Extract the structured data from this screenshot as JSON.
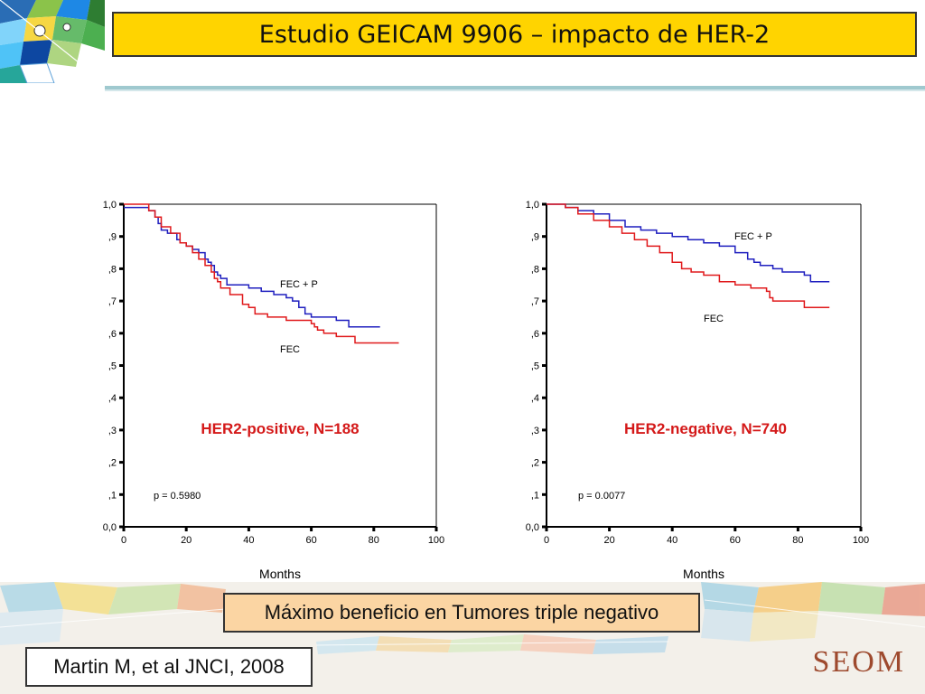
{
  "slide": {
    "title": "Estudio GEICAM 9906 – impacto de HER-2",
    "highlight": "Máximo beneficio en Tumores triple negativo",
    "citation": "Martin M, et al JNCI, 2008",
    "brand": "SEOM"
  },
  "colors": {
    "title_bg": "#ffd400",
    "highlight_bg": "#fbd5a3",
    "fec_p_line": "#1f1fbf",
    "fec_line": "#e0191b",
    "subtitle_text": "#d41919"
  },
  "chart_data": [
    {
      "type": "line",
      "subtitle": "HER2-positive, N=188",
      "xlabel": "Months",
      "ylabel": "",
      "xlim": [
        0,
        100
      ],
      "ylim": [
        0,
        1
      ],
      "x_ticks": [
        "0",
        "20",
        "40",
        "60",
        "80",
        "100"
      ],
      "y_ticks": [
        "0,0",
        ",1",
        ",2",
        ",3",
        ",4",
        ",5",
        ",6",
        ",7",
        ",8",
        ",9",
        "1,0"
      ],
      "annotation": "p = 0.5980",
      "series": [
        {
          "name": "FEC + P",
          "color": "#1f1fbf",
          "points": [
            [
              0,
              0.99
            ],
            [
              4,
              0.99
            ],
            [
              8,
              0.98
            ],
            [
              10,
              0.96
            ],
            [
              11,
              0.94
            ],
            [
              12,
              0.92
            ],
            [
              14,
              0.91
            ],
            [
              17,
              0.89
            ],
            [
              18,
              0.88
            ],
            [
              20,
              0.87
            ],
            [
              22,
              0.86
            ],
            [
              24,
              0.85
            ],
            [
              26,
              0.83
            ],
            [
              27,
              0.82
            ],
            [
              28,
              0.81
            ],
            [
              29,
              0.79
            ],
            [
              30,
              0.78
            ],
            [
              31,
              0.77
            ],
            [
              33,
              0.75
            ],
            [
              34,
              0.75
            ],
            [
              38,
              0.75
            ],
            [
              40,
              0.74
            ],
            [
              44,
              0.73
            ],
            [
              48,
              0.72
            ],
            [
              52,
              0.71
            ],
            [
              54,
              0.7
            ],
            [
              56,
              0.68
            ],
            [
              58,
              0.66
            ],
            [
              60,
              0.65
            ],
            [
              62,
              0.65
            ],
            [
              68,
              0.64
            ],
            [
              69,
              0.64
            ],
            [
              72,
              0.62
            ],
            [
              82,
              0.62
            ]
          ]
        },
        {
          "name": "FEC",
          "color": "#e0191b",
          "points": [
            [
              0,
              1.0
            ],
            [
              2,
              1.0
            ],
            [
              5,
              1.0
            ],
            [
              8,
              0.98
            ],
            [
              10,
              0.96
            ],
            [
              12,
              0.93
            ],
            [
              15,
              0.91
            ],
            [
              18,
              0.88
            ],
            [
              20,
              0.87
            ],
            [
              22,
              0.85
            ],
            [
              24,
              0.83
            ],
            [
              26,
              0.81
            ],
            [
              28,
              0.79
            ],
            [
              29,
              0.77
            ],
            [
              30,
              0.76
            ],
            [
              31,
              0.74
            ],
            [
              34,
              0.72
            ],
            [
              38,
              0.69
            ],
            [
              40,
              0.68
            ],
            [
              42,
              0.66
            ],
            [
              46,
              0.65
            ],
            [
              52,
              0.64
            ],
            [
              60,
              0.63
            ],
            [
              61,
              0.62
            ],
            [
              62,
              0.61
            ],
            [
              64,
              0.6
            ],
            [
              68,
              0.59
            ],
            [
              72,
              0.59
            ],
            [
              74,
              0.57
            ],
            [
              88,
              0.57
            ]
          ]
        }
      ]
    },
    {
      "type": "line",
      "subtitle": "HER2-negative, N=740",
      "xlabel": "Months",
      "ylabel": "",
      "xlim": [
        0,
        100
      ],
      "ylim": [
        0,
        1
      ],
      "x_ticks": [
        "0",
        "20",
        "40",
        "60",
        "80",
        "100"
      ],
      "y_ticks": [
        "0,0",
        ",1",
        ",2",
        ",3",
        ",4",
        ",5",
        ",6",
        ",7",
        ",8",
        ",9",
        "1,0"
      ],
      "annotation": "p = 0.0077",
      "series": [
        {
          "name": "FEC + P",
          "color": "#1f1fbf",
          "points": [
            [
              0,
              1.0
            ],
            [
              4,
              1.0
            ],
            [
              6,
              0.99
            ],
            [
              10,
              0.98
            ],
            [
              15,
              0.97
            ],
            [
              20,
              0.95
            ],
            [
              25,
              0.93
            ],
            [
              30,
              0.92
            ],
            [
              35,
              0.91
            ],
            [
              40,
              0.9
            ],
            [
              45,
              0.89
            ],
            [
              50,
              0.88
            ],
            [
              55,
              0.87
            ],
            [
              60,
              0.85
            ],
            [
              64,
              0.83
            ],
            [
              66,
              0.82
            ],
            [
              68,
              0.81
            ],
            [
              72,
              0.8
            ],
            [
              75,
              0.79
            ],
            [
              80,
              0.79
            ],
            [
              82,
              0.78
            ],
            [
              84,
              0.76
            ],
            [
              90,
              0.76
            ]
          ]
        },
        {
          "name": "FEC",
          "color": "#e0191b",
          "points": [
            [
              0,
              1.0
            ],
            [
              4,
              1.0
            ],
            [
              6,
              0.99
            ],
            [
              10,
              0.97
            ],
            [
              15,
              0.95
            ],
            [
              20,
              0.93
            ],
            [
              24,
              0.91
            ],
            [
              28,
              0.89
            ],
            [
              32,
              0.87
            ],
            [
              36,
              0.85
            ],
            [
              40,
              0.82
            ],
            [
              43,
              0.8
            ],
            [
              46,
              0.79
            ],
            [
              50,
              0.78
            ],
            [
              55,
              0.76
            ],
            [
              60,
              0.75
            ],
            [
              65,
              0.74
            ],
            [
              70,
              0.73
            ],
            [
              71,
              0.71
            ],
            [
              72,
              0.7
            ],
            [
              80,
              0.7
            ],
            [
              82,
              0.68
            ],
            [
              90,
              0.68
            ]
          ]
        }
      ]
    }
  ]
}
